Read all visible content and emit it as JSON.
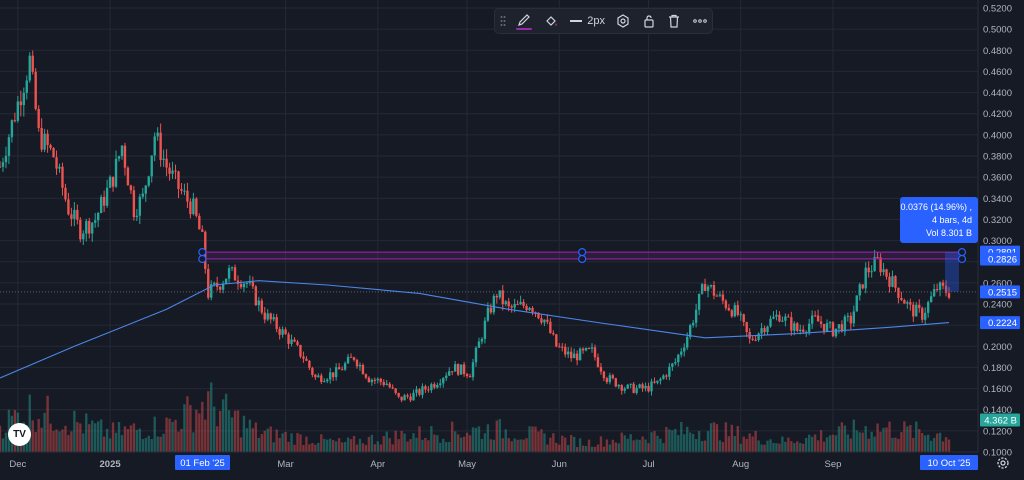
{
  "toolbar": {
    "line_width_label": "2px",
    "pencil_color": "#9c27b0",
    "icons": [
      "drag-handle-icon",
      "pencil-icon",
      "fill-bucket-icon",
      "line-width-icon",
      "settings-icon",
      "lock-icon",
      "trash-icon",
      "more-icon"
    ]
  },
  "measure_label": {
    "line1": "0.0376 (14.96%) ,",
    "line2": "4 bars, 4d",
    "line3": "Vol 8.301 B"
  },
  "axis_badges": {
    "upper_level": "0.2891",
    "lower_level": "0.2826",
    "last_price": "0.2515",
    "moving_average": "0.2224",
    "volume": "4.362 B",
    "date_start": "01 Feb '25",
    "date_end": "10 Oct '25"
  },
  "colors": {
    "background": "#161a25",
    "up": "#26a69a",
    "down": "#ef5350",
    "moving_average": "#2962ff",
    "zone": "#9c27b0",
    "badge": "#2962ff",
    "grid": "#242936"
  },
  "logo_text": "TV",
  "chart_data": {
    "type": "candlestick",
    "y_axis": {
      "ticks": [
        "0.5200",
        "0.5000",
        "0.4800",
        "0.4600",
        "0.4400",
        "0.4200",
        "0.4000",
        "0.3800",
        "0.3600",
        "0.3400",
        "0.3200",
        "0.3000",
        "0.2800",
        "0.2600",
        "0.2400",
        "0.2200",
        "0.2000",
        "0.1800",
        "0.1600",
        "0.1400",
        "0.1200",
        "0.1000"
      ],
      "range": [
        0.1,
        0.52
      ]
    },
    "x_axis": {
      "ticks": [
        "Dec",
        "2025",
        "Mar",
        "Apr",
        "May",
        "Jun",
        "Jul",
        "Aug",
        "Sep"
      ],
      "bold_ticks": [
        "2025"
      ]
    },
    "grid": true,
    "price_path": [
      [
        "2024-11-25",
        0.37
      ],
      [
        "2024-12-01",
        0.43
      ],
      [
        "2024-12-05",
        0.47
      ],
      [
        "2024-12-08",
        0.4
      ],
      [
        "2024-12-13",
        0.38
      ],
      [
        "2024-12-18",
        0.33
      ],
      [
        "2024-12-22",
        0.31
      ],
      [
        "2024-12-27",
        0.32
      ],
      [
        "2025-01-02",
        0.36
      ],
      [
        "2025-01-05",
        0.39
      ],
      [
        "2025-01-09",
        0.33
      ],
      [
        "2025-01-12",
        0.34
      ],
      [
        "2025-01-16",
        0.4
      ],
      [
        "2025-01-20",
        0.37
      ],
      [
        "2025-01-24",
        0.35
      ],
      [
        "2025-01-29",
        0.33
      ],
      [
        "2025-02-01",
        0.3
      ],
      [
        "2025-02-03",
        0.25
      ],
      [
        "2025-02-07",
        0.26
      ],
      [
        "2025-02-10",
        0.27
      ],
      [
        "2025-02-16",
        0.26
      ],
      [
        "2025-02-22",
        0.23
      ],
      [
        "2025-03-01",
        0.21
      ],
      [
        "2025-03-07",
        0.19
      ],
      [
        "2025-03-11",
        0.17
      ],
      [
        "2025-03-18",
        0.175
      ],
      [
        "2025-03-24",
        0.19
      ],
      [
        "2025-03-29",
        0.17
      ],
      [
        "2025-04-04",
        0.165
      ],
      [
        "2025-04-08",
        0.15
      ],
      [
        "2025-04-14",
        0.155
      ],
      [
        "2025-04-20",
        0.165
      ],
      [
        "2025-04-26",
        0.18
      ],
      [
        "2025-05-02",
        0.175
      ],
      [
        "2025-05-08",
        0.23
      ],
      [
        "2025-05-11",
        0.25
      ],
      [
        "2025-05-15",
        0.235
      ],
      [
        "2025-05-22",
        0.24
      ],
      [
        "2025-05-27",
        0.225
      ],
      [
        "2025-05-31",
        0.2
      ],
      [
        "2025-06-05",
        0.19
      ],
      [
        "2025-06-12",
        0.195
      ],
      [
        "2025-06-17",
        0.17
      ],
      [
        "2025-06-24",
        0.16
      ],
      [
        "2025-06-30",
        0.16
      ],
      [
        "2025-07-04",
        0.165
      ],
      [
        "2025-07-10",
        0.185
      ],
      [
        "2025-07-14",
        0.21
      ],
      [
        "2025-07-20",
        0.26
      ],
      [
        "2025-07-25",
        0.245
      ],
      [
        "2025-07-31",
        0.23
      ],
      [
        "2025-08-04",
        0.205
      ],
      [
        "2025-08-09",
        0.22
      ],
      [
        "2025-08-14",
        0.23
      ],
      [
        "2025-08-20",
        0.215
      ],
      [
        "2025-08-26",
        0.225
      ],
      [
        "2025-09-01",
        0.215
      ],
      [
        "2025-09-07",
        0.225
      ],
      [
        "2025-09-12",
        0.27
      ],
      [
        "2025-09-16",
        0.28
      ],
      [
        "2025-09-21",
        0.26
      ],
      [
        "2025-09-27",
        0.235
      ],
      [
        "2025-10-01",
        0.23
      ],
      [
        "2025-10-06",
        0.255
      ],
      [
        "2025-10-10",
        0.2515
      ]
    ],
    "moving_average_path": [
      [
        "2024-11-25",
        0.17
      ],
      [
        "2024-12-20",
        0.2
      ],
      [
        "2025-01-20",
        0.235
      ],
      [
        "2025-02-05",
        0.258
      ],
      [
        "2025-02-20",
        0.262
      ],
      [
        "2025-03-15",
        0.258
      ],
      [
        "2025-04-15",
        0.25
      ],
      [
        "2025-05-15",
        0.235
      ],
      [
        "2025-06-15",
        0.222
      ],
      [
        "2025-07-20",
        0.208
      ],
      [
        "2025-08-20",
        0.212
      ],
      [
        "2025-09-20",
        0.218
      ],
      [
        "2025-10-10",
        0.2224
      ]
    ],
    "zone": {
      "upper": 0.2891,
      "lower": 0.2826,
      "from": "2025-02-01",
      "to": "2025-10-10"
    },
    "volume_path": [
      [
        "2024-11-25",
        0.35
      ],
      [
        "2024-12-05",
        0.55
      ],
      [
        "2024-12-15",
        0.45
      ],
      [
        "2025-01-01",
        0.25
      ],
      [
        "2025-01-20",
        0.35
      ],
      [
        "2025-02-03",
        0.65
      ],
      [
        "2025-02-20",
        0.25
      ],
      [
        "2025-03-20",
        0.12
      ],
      [
        "2025-04-10",
        0.22
      ],
      [
        "2025-05-10",
        0.3
      ],
      [
        "2025-06-10",
        0.12
      ],
      [
        "2025-07-20",
        0.3
      ],
      [
        "2025-08-15",
        0.14
      ],
      [
        "2025-09-15",
        0.32
      ],
      [
        "2025-10-10",
        0.22
      ]
    ]
  }
}
